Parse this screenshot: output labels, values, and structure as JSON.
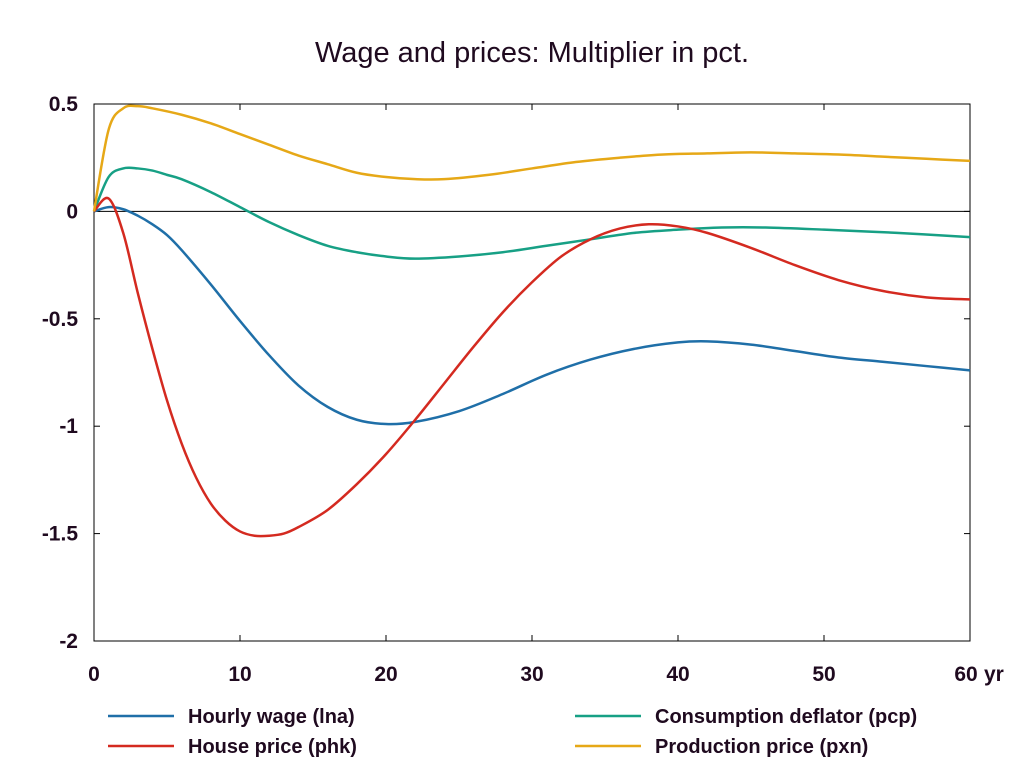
{
  "chart_data": {
    "type": "line",
    "title": "Wage and prices: Multiplier in pct.",
    "xlabel": "",
    "ylabel": "",
    "x_unit_label": "yr",
    "xlim": [
      0,
      60
    ],
    "ylim": [
      -2,
      0.5
    ],
    "x_ticks": [
      0,
      10,
      20,
      30,
      40,
      50,
      60
    ],
    "x_tick_labels": [
      "0",
      "10",
      "20",
      "30",
      "40",
      "50",
      "60"
    ],
    "y_ticks": [
      0.5,
      0,
      -0.5,
      -1,
      -1.5,
      -2
    ],
    "y_tick_labels": [
      "0.5",
      "0",
      "-0.5",
      "-1",
      "-1.5",
      "-2"
    ],
    "zero_line": true,
    "grid": false,
    "legend_position": "bottom",
    "series": [
      {
        "name": "Hourly wage (lna)",
        "color": "#1f6fa8",
        "x": [
          0,
          1,
          2,
          3,
          4,
          5,
          6,
          8,
          10,
          12,
          14,
          16,
          18,
          20,
          22,
          25,
          28,
          31,
          34,
          37,
          40,
          42,
          45,
          48,
          51,
          54,
          57,
          60
        ],
        "y": [
          0,
          0.02,
          0.01,
          -0.02,
          -0.06,
          -0.11,
          -0.18,
          -0.34,
          -0.51,
          -0.67,
          -0.81,
          -0.91,
          -0.97,
          -0.99,
          -0.98,
          -0.93,
          -0.85,
          -0.76,
          -0.69,
          -0.64,
          -0.61,
          -0.605,
          -0.62,
          -0.65,
          -0.68,
          -0.7,
          -0.72,
          -0.74
        ]
      },
      {
        "name": "Consumption deflator (pcp)",
        "color": "#17a085",
        "x": [
          0,
          1,
          2,
          3,
          4,
          5,
          6,
          8,
          10,
          12,
          14,
          16,
          18,
          20,
          22,
          25,
          28,
          31,
          34,
          37,
          40,
          43,
          46,
          50,
          55,
          60
        ],
        "y": [
          0,
          0.16,
          0.2,
          0.2,
          0.19,
          0.17,
          0.15,
          0.09,
          0.02,
          -0.05,
          -0.11,
          -0.16,
          -0.19,
          -0.21,
          -0.22,
          -0.21,
          -0.19,
          -0.16,
          -0.13,
          -0.1,
          -0.085,
          -0.075,
          -0.075,
          -0.085,
          -0.1,
          -0.12
        ]
      },
      {
        "name": "House price (phk)",
        "color": "#d42a20",
        "x": [
          0,
          1,
          2,
          3,
          4,
          5,
          6,
          7,
          8,
          9,
          10,
          11,
          12,
          13,
          14,
          16,
          18,
          20,
          22,
          24,
          26,
          28,
          30,
          32,
          34,
          36,
          38,
          40,
          42,
          45,
          48,
          51,
          54,
          57,
          60
        ],
        "y": [
          0,
          0.06,
          -0.1,
          -0.38,
          -0.64,
          -0.88,
          -1.08,
          -1.24,
          -1.36,
          -1.44,
          -1.49,
          -1.51,
          -1.51,
          -1.5,
          -1.47,
          -1.39,
          -1.27,
          -1.13,
          -0.97,
          -0.8,
          -0.63,
          -0.47,
          -0.33,
          -0.21,
          -0.13,
          -0.08,
          -0.06,
          -0.07,
          -0.1,
          -0.17,
          -0.25,
          -0.32,
          -0.37,
          -0.4,
          -0.41
        ]
      },
      {
        "name": "Production price (pxn)",
        "color": "#e6a817",
        "x": [
          0,
          1,
          2,
          3,
          4,
          6,
          8,
          10,
          12,
          14,
          16,
          18,
          20,
          22,
          24,
          27,
          30,
          33,
          36,
          39,
          42,
          45,
          48,
          51,
          54,
          57,
          60
        ],
        "y": [
          0,
          0.38,
          0.48,
          0.49,
          0.48,
          0.45,
          0.41,
          0.36,
          0.31,
          0.26,
          0.22,
          0.18,
          0.16,
          0.15,
          0.15,
          0.17,
          0.2,
          0.23,
          0.25,
          0.265,
          0.27,
          0.275,
          0.27,
          0.265,
          0.255,
          0.245,
          0.235
        ]
      }
    ]
  }
}
